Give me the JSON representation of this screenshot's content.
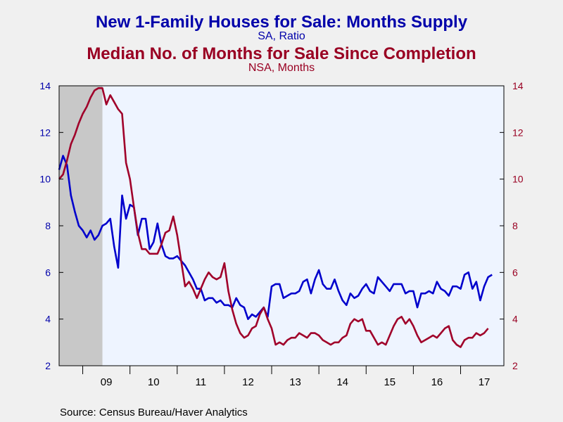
{
  "chart_data": {
    "type": "line",
    "titles": [
      {
        "title": "New 1-Family Houses for Sale: Months Supply",
        "subtitle": "SA, Ratio",
        "color": "#0000aa"
      },
      {
        "title": "Median No. of Months for Sale Since Completion",
        "subtitle": "NSA, Months",
        "color": "#990022"
      }
    ],
    "x_tick_labels": [
      "09",
      "10",
      "11",
      "12",
      "13",
      "14",
      "15",
      "16",
      "17"
    ],
    "x_range": [
      "2008-07",
      "2017-12"
    ],
    "recession_shading": [
      "2008-07",
      "2009-06"
    ],
    "left_axis": {
      "ylim": [
        2,
        14
      ],
      "ticks": [
        2,
        4,
        6,
        8,
        10,
        12,
        14
      ],
      "color": "#0000aa"
    },
    "right_axis": {
      "ylim": [
        2,
        14
      ],
      "ticks": [
        2,
        4,
        6,
        8,
        10,
        12,
        14
      ],
      "color": "#990022"
    },
    "grid": false,
    "series": [
      {
        "color": "#0000cc",
        "axis": "left",
        "start": "2008-07",
        "frequency": "monthly",
        "values": [
          10.4,
          11.0,
          10.6,
          9.3,
          8.6,
          8.0,
          7.8,
          7.5,
          7.8,
          7.4,
          7.6,
          8.0,
          8.1,
          8.3,
          7.1,
          6.2,
          9.3,
          8.3,
          8.9,
          8.8,
          7.6,
          8.3,
          8.3,
          7.0,
          7.3,
          8.1,
          7.2,
          6.7,
          6.6,
          6.6,
          6.7,
          6.5,
          6.3,
          6.0,
          5.7,
          5.3,
          5.3,
          4.8,
          4.9,
          4.9,
          4.7,
          4.8,
          4.6,
          4.6,
          4.5,
          4.9,
          4.6,
          4.5,
          4.0,
          4.2,
          4.1,
          4.3,
          4.5,
          4.1,
          5.4,
          5.5,
          5.5,
          4.9,
          5.0,
          5.1,
          5.1,
          5.2,
          5.6,
          5.7,
          5.1,
          5.7,
          6.1,
          5.5,
          5.3,
          5.3,
          5.7,
          5.2,
          4.8,
          4.6,
          5.1,
          4.9,
          5.0,
          5.3,
          5.5,
          5.2,
          5.1,
          5.8,
          5.6,
          5.4,
          5.2,
          5.5,
          5.5,
          5.5,
          5.1,
          5.2,
          5.2,
          4.5,
          5.1,
          5.1,
          5.2,
          5.1,
          5.6,
          5.3,
          5.2,
          5.0,
          5.4,
          5.4,
          5.3,
          5.9,
          6.0,
          5.3,
          5.6,
          4.8,
          5.4,
          5.8,
          5.9
        ]
      },
      {
        "color": "#a0002a",
        "axis": "right",
        "start": "2008-07",
        "frequency": "monthly",
        "values": [
          10.0,
          10.2,
          10.8,
          11.5,
          11.9,
          12.4,
          12.8,
          13.1,
          13.5,
          13.8,
          13.9,
          13.9,
          13.2,
          13.6,
          13.3,
          13.0,
          12.8,
          10.7,
          10.0,
          8.8,
          7.7,
          7.0,
          7.0,
          6.8,
          6.8,
          6.8,
          7.2,
          7.7,
          7.8,
          8.4,
          7.6,
          6.5,
          5.4,
          5.6,
          5.3,
          4.9,
          5.3,
          5.7,
          6.0,
          5.8,
          5.7,
          5.8,
          6.4,
          5.2,
          4.4,
          3.8,
          3.4,
          3.2,
          3.3,
          3.6,
          3.7,
          4.2,
          4.5,
          4.0,
          3.6,
          2.9,
          3.0,
          2.9,
          3.1,
          3.2,
          3.2,
          3.4,
          3.3,
          3.2,
          3.4,
          3.4,
          3.3,
          3.1,
          3.0,
          2.9,
          3.0,
          3.0,
          3.2,
          3.3,
          3.8,
          4.0,
          3.9,
          4.0,
          3.5,
          3.5,
          3.2,
          2.9,
          3.0,
          2.9,
          3.3,
          3.7,
          4.0,
          4.1,
          3.8,
          4.0,
          3.7,
          3.3,
          3.0,
          3.1,
          3.2,
          3.3,
          3.2,
          3.4,
          3.6,
          3.7,
          3.1,
          2.9,
          2.8,
          3.1,
          3.2,
          3.2,
          3.4,
          3.3,
          3.4,
          3.6
        ]
      }
    ]
  },
  "source": "Source:  Census Bureau/Haver Analytics"
}
